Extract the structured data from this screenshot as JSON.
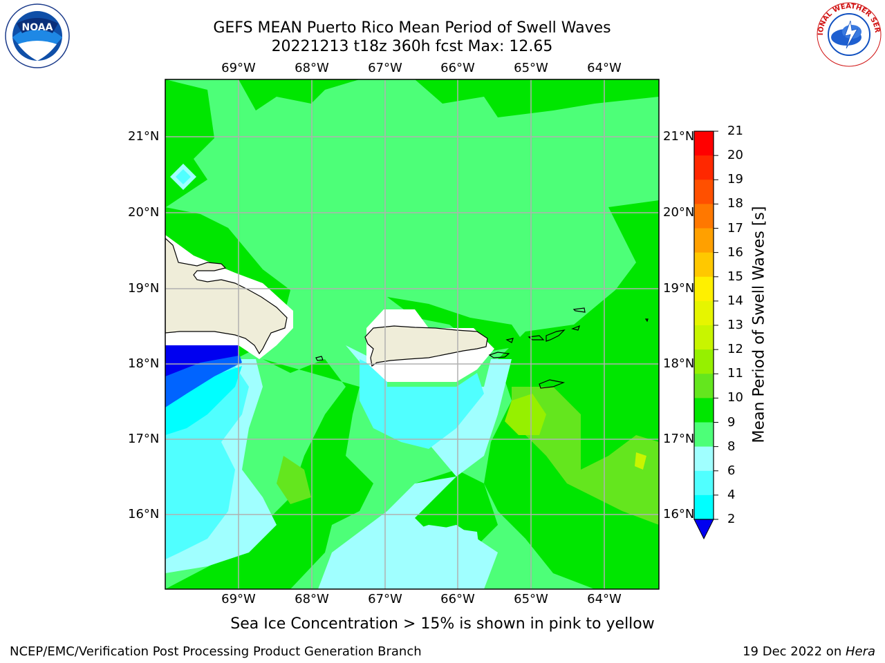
{
  "header": {
    "title_line1": "GEFS MEAN Puerto Rico Mean Period of Swell Waves",
    "title_line2": "20221213 t18z 360h fcst   Max: 12.65"
  },
  "map": {
    "lon_labels": [
      "69°W",
      "68°W",
      "67°W",
      "66°W",
      "65°W",
      "64°W"
    ],
    "lat_labels": [
      "21°N",
      "20°N",
      "19°N",
      "18°N",
      "17°N",
      "16°N"
    ]
  },
  "colorbar": {
    "title": "Mean Period of Swell Waves [s]",
    "ticks": [
      "21",
      "20",
      "19",
      "18",
      "17",
      "16",
      "15",
      "14",
      "13",
      "12",
      "11",
      "10",
      "9",
      "8",
      "6",
      "4",
      "2"
    ],
    "colors": [
      "#ff0000",
      "#ff2800",
      "#ff5000",
      "#ff7800",
      "#ffa000",
      "#ffc800",
      "#fff000",
      "#e6f500",
      "#c8f500",
      "#96f000",
      "#64e61e",
      "#00e600",
      "#4dff78",
      "#a0ffff",
      "#50ffff",
      "#00ffff",
      "#00c8ff",
      "#0064ff",
      "#0000f0"
    ]
  },
  "footer": {
    "note": "Sea Ice Concentration > 15% is shown in pink to yellow",
    "left": "NCEP/EMC/Verification Post Processing Product Generation Branch",
    "right_prefix": "19 Dec 2022 on ",
    "right_host": "Hera"
  },
  "logos": {
    "noaa_text": "NOAA",
    "nws_text": "NATIONAL WEATHER SERVICE"
  }
}
